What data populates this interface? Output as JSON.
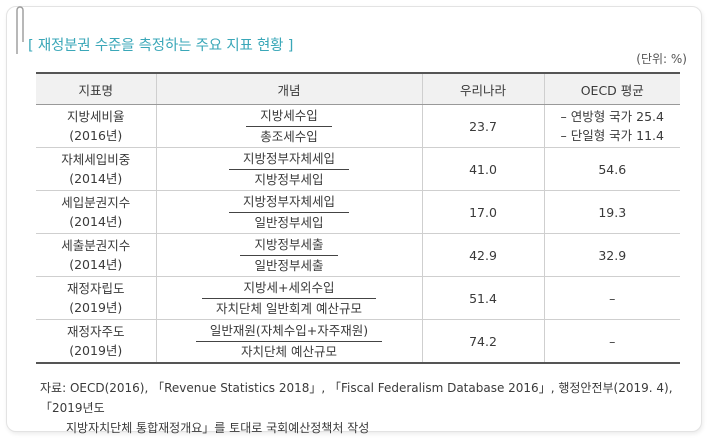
{
  "title": "[ 재정분권 수준을 측정하는 주요 지표 현황 ]",
  "unit": "(단위: %)",
  "headers": [
    "지표명",
    "개념",
    "우리나라",
    "OECD 평균"
  ],
  "rows": [
    {
      "name_line1": "지방세비율",
      "name_line2": "(2016년)",
      "numerator": "지방세수입",
      "denominator": "총조세수입",
      "korea": "23.7",
      "oecd_lines": [
        "– 연방형 국가 25.4",
        "– 단일형 국가 11.4"
      ]
    },
    {
      "name_line1": "자체세입비중",
      "name_line2": "(2014년)",
      "numerator": "지방정부자체세입",
      "denominator": "지방정부세입",
      "korea": "41.0",
      "oecd": "54.6"
    },
    {
      "name_line1": "세입분권지수",
      "name_line2": "(2014년)",
      "numerator": "지방정부자체세입",
      "denominator": "일반정부세입",
      "korea": "17.0",
      "oecd": "19.3"
    },
    {
      "name_line1": "세출분권지수",
      "name_line2": "(2014년)",
      "numerator": "지방정부세출",
      "denominator": "일반정부세출",
      "korea": "42.9",
      "oecd": "32.9"
    },
    {
      "name_line1": "재정자립도",
      "name_line2": "(2019년)",
      "numerator": "지방세+세외수입",
      "denominator": "자치단체 일반회계 예산규모",
      "korea": "51.4",
      "oecd": "–"
    },
    {
      "name_line1": "재정자주도",
      "name_line2": "(2019년)",
      "numerator": "일반재원(자체수입+자주재원)",
      "denominator": "자치단체 예산규모",
      "korea": "74.2",
      "oecd": "–"
    }
  ],
  "source": {
    "line1": "자료: OECD(2016), 「Revenue Statistics 2018」, 「Fiscal Federalism Database 2016」, 행정안전부(2019. 4), 「2019년도",
    "line2": "지방자치단체 통합재정개요」를 토대로 국회예산정책처 작성"
  }
}
